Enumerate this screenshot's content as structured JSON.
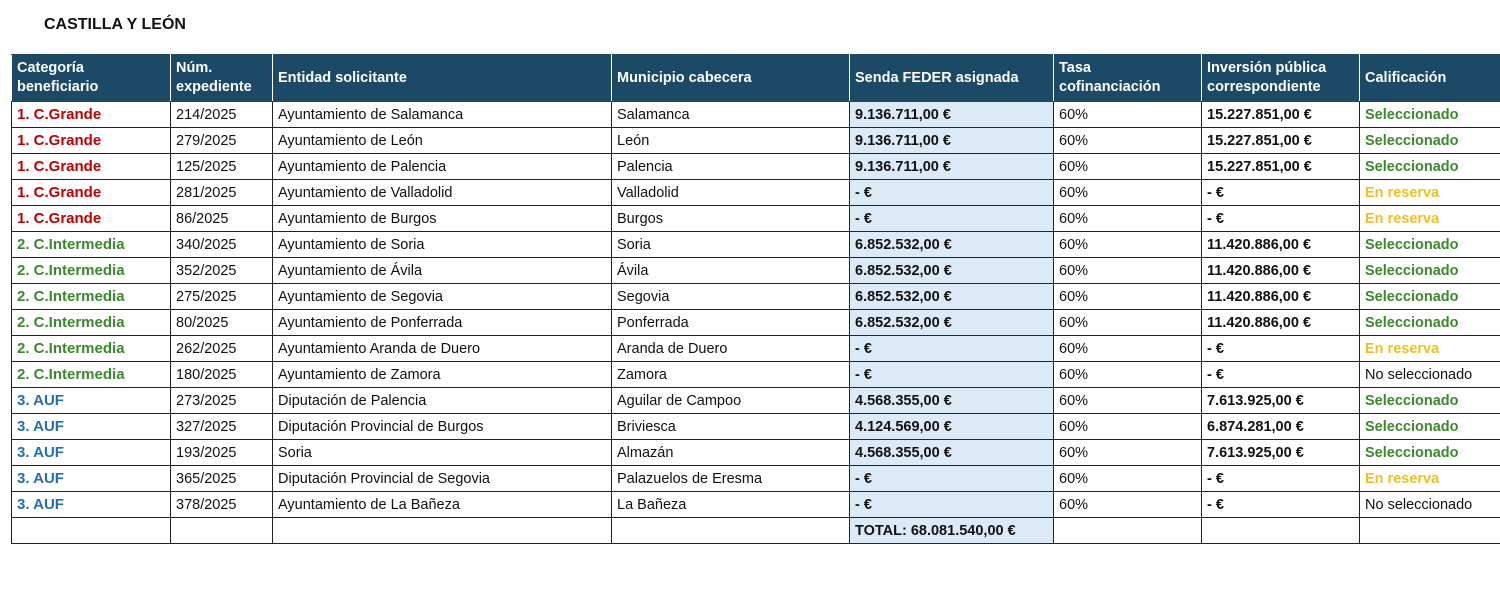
{
  "title": "CASTILLA Y LEÓN",
  "colors": {
    "header_bg": "#1c4a66",
    "grande": "#c00000",
    "intermedia": "#3a8a2a",
    "auf": "#1f6fb5",
    "seleccionado": "#3a8a2a",
    "reserva": "#f0c020",
    "no_seleccionado": "#111111",
    "feder_bg": "#dce9f6"
  },
  "headers": [
    "Categoría beneficiario",
    "Núm. expediente",
    "Entidad solicitante",
    "Municipio cabecera",
    "Senda FEDER asignada",
    "Tasa cofinanciación",
    "Inversión pública correspondiente",
    "Calificación"
  ],
  "rows": [
    {
      "cat": "1. C.Grande",
      "type": "grande",
      "exp": "214/2025",
      "entidad": "Ayuntamiento de Salamanca",
      "municipio": "Salamanca",
      "feder": "9.136.711,00 €",
      "tasa": "60%",
      "inversion": "15.227.851,00 €",
      "calif": "Seleccionado",
      "status": "seleccionado"
    },
    {
      "cat": "1. C.Grande",
      "type": "grande",
      "exp": "279/2025",
      "entidad": "Ayuntamiento de León",
      "municipio": "León",
      "feder": "9.136.711,00 €",
      "tasa": "60%",
      "inversion": "15.227.851,00 €",
      "calif": "Seleccionado",
      "status": "seleccionado"
    },
    {
      "cat": "1. C.Grande",
      "type": "grande",
      "exp": "125/2025",
      "entidad": "Ayuntamiento de Palencia",
      "municipio": "Palencia",
      "feder": "9.136.711,00 €",
      "tasa": "60%",
      "inversion": "15.227.851,00 €",
      "calif": "Seleccionado",
      "status": "seleccionado"
    },
    {
      "cat": "1. C.Grande",
      "type": "grande",
      "exp": "281/2025",
      "entidad": "Ayuntamiento de Valladolid",
      "municipio": "Valladolid",
      "feder": "-  €",
      "tasa": "60%",
      "inversion": "-  €",
      "calif": "En reserva",
      "status": "reserva"
    },
    {
      "cat": "1. C.Grande",
      "type": "grande",
      "exp": "86/2025",
      "entidad": "Ayuntamiento de Burgos",
      "municipio": "Burgos",
      "feder": "-  €",
      "tasa": "60%",
      "inversion": "-  €",
      "calif": "En reserva",
      "status": "reserva"
    },
    {
      "cat": "2. C.Intermedia",
      "type": "intermedia",
      "exp": "340/2025",
      "entidad": "Ayuntamiento de Soria",
      "municipio": "Soria",
      "feder": "6.852.532,00 €",
      "tasa": "60%",
      "inversion": "11.420.886,00 €",
      "calif": "Seleccionado",
      "status": "seleccionado"
    },
    {
      "cat": "2. C.Intermedia",
      "type": "intermedia",
      "exp": "352/2025",
      "entidad": "Ayuntamiento de Ávila",
      "municipio": "Ávila",
      "feder": "6.852.532,00 €",
      "tasa": "60%",
      "inversion": "11.420.886,00 €",
      "calif": "Seleccionado",
      "status": "seleccionado"
    },
    {
      "cat": "2. C.Intermedia",
      "type": "intermedia",
      "exp": "275/2025",
      "entidad": "Ayuntamiento de Segovia",
      "municipio": "Segovia",
      "feder": "6.852.532,00 €",
      "tasa": "60%",
      "inversion": "11.420.886,00 €",
      "calif": "Seleccionado",
      "status": "seleccionado"
    },
    {
      "cat": "2. C.Intermedia",
      "type": "intermedia",
      "exp": "80/2025",
      "entidad": "Ayuntamiento de Ponferrada",
      "municipio": "Ponferrada",
      "feder": "6.852.532,00 €",
      "tasa": "60%",
      "inversion": "11.420.886,00 €",
      "calif": "Seleccionado",
      "status": "seleccionado"
    },
    {
      "cat": "2. C.Intermedia",
      "type": "intermedia",
      "exp": "262/2025",
      "entidad": "Ayuntamiento Aranda de Duero",
      "municipio": "Aranda de Duero",
      "feder": "-  €",
      "tasa": "60%",
      "inversion": "-  €",
      "calif": "En reserva",
      "status": "reserva"
    },
    {
      "cat": "2. C.Intermedia",
      "type": "intermedia",
      "exp": "180/2025",
      "entidad": "Ayuntamiento de Zamora",
      "municipio": "Zamora",
      "feder": "-  €",
      "tasa": "60%",
      "inversion": "-  €",
      "calif": "No seleccionado",
      "status": "no_seleccionado"
    },
    {
      "cat": "3. AUF",
      "type": "auf",
      "exp": "273/2025",
      "entidad": "Diputación de Palencia",
      "municipio": "Aguilar de Campoo",
      "feder": "4.568.355,00 €",
      "tasa": "60%",
      "inversion": "7.613.925,00 €",
      "calif": "Seleccionado",
      "status": "seleccionado"
    },
    {
      "cat": "3. AUF",
      "type": "auf",
      "exp": "327/2025",
      "entidad": "Diputación Provincial de Burgos",
      "municipio": "Briviesca",
      "feder": "4.124.569,00 €",
      "tasa": "60%",
      "inversion": "6.874.281,00 €",
      "calif": "Seleccionado",
      "status": "seleccionado"
    },
    {
      "cat": "3. AUF",
      "type": "auf",
      "exp": "193/2025",
      "entidad": "Soria",
      "municipio": "Almazán",
      "feder": "4.568.355,00 €",
      "tasa": "60%",
      "inversion": "7.613.925,00 €",
      "calif": "Seleccionado",
      "status": "seleccionado"
    },
    {
      "cat": "3. AUF",
      "type": "auf",
      "exp": "365/2025",
      "entidad": "Diputación Provincial de Segovia",
      "municipio": "Palazuelos de Eresma",
      "feder": "-  €",
      "tasa": "60%",
      "inversion": "-  €",
      "calif": "En reserva",
      "status": "reserva"
    },
    {
      "cat": "3. AUF",
      "type": "auf",
      "exp": "378/2025",
      "entidad": "Ayuntamiento de La Bañeza",
      "municipio": "La Bañeza",
      "feder": "-  €",
      "tasa": "60%",
      "inversion": "-  €",
      "calif": "No seleccionado",
      "status": "no_seleccionado"
    }
  ],
  "total": "TOTAL: 68.081.540,00 €"
}
